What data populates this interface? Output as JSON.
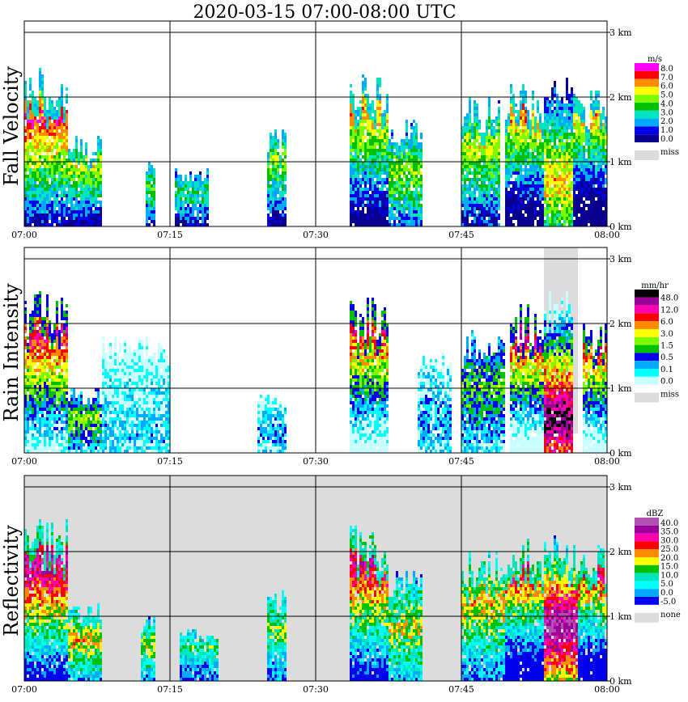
{
  "title": "2020-03-15   07:00-08:00 UTC",
  "x_ticks": [
    "07:00",
    "07:15",
    "07:30",
    "07:45",
    "08:00"
  ],
  "y_ticks": [
    "0 km",
    "1 km",
    "2 km",
    "3 km"
  ],
  "missing_color": "#dcdcdc",
  "chart_data": [
    {
      "type": "heatmap",
      "title": "",
      "ylabel": "Fall Velocity",
      "xlabel": "",
      "xlim": [
        "07:00",
        "08:00"
      ],
      "ylim": [
        0,
        3
      ],
      "unit": "m/s",
      "missing_label": "miss",
      "legend_levels": [
        "8.0",
        "7.0",
        "6.0",
        "5.0",
        "4.0",
        "3.0",
        "2.0",
        "1.0",
        "0.0"
      ],
      "legend_colors": [
        "#ff00ff",
        "#ff0000",
        "#ff8c00",
        "#ffff00",
        "#7cfc00",
        "#00c000",
        "#00e5c0",
        "#00aaff",
        "#0000ee",
        "#0a0090"
      ],
      "echo_columns": [
        {
          "t0": 0.0,
          "t1": 4.5,
          "top": 2.5,
          "core": 1.6,
          "peak": 0.85
        },
        {
          "t0": 4.5,
          "t1": 8.0,
          "top": 1.4,
          "core": 0.9,
          "peak": 0.6
        },
        {
          "t0": 12.5,
          "t1": 13.5,
          "top": 1.1,
          "core": 0.6,
          "peak": 0.5
        },
        {
          "t0": 15.5,
          "t1": 19.0,
          "top": 0.9,
          "core": 0.5,
          "peak": 0.4
        },
        {
          "t0": 25.0,
          "t1": 27.0,
          "top": 1.5,
          "core": 1.0,
          "peak": 0.55
        },
        {
          "t0": 33.5,
          "t1": 37.5,
          "top": 2.4,
          "core": 1.8,
          "peak": 0.75
        },
        {
          "t0": 37.5,
          "t1": 41.0,
          "top": 1.7,
          "core": 0.8,
          "peak": 0.55
        },
        {
          "t0": 45.0,
          "t1": 49.0,
          "top": 2.0,
          "core": 1.2,
          "peak": 0.6
        },
        {
          "t0": 49.5,
          "t1": 53.5,
          "top": 2.2,
          "core": 1.8,
          "peak": 0.8
        },
        {
          "t0": 53.5,
          "t1": 56.5,
          "top": 2.3,
          "core": 0.7,
          "peak": 0.7
        },
        {
          "t0": 56.5,
          "t1": 60.0,
          "top": 2.1,
          "core": 1.9,
          "peak": 0.85
        }
      ],
      "missing_regions": []
    },
    {
      "type": "heatmap",
      "title": "",
      "ylabel": "Rain Intensity",
      "xlabel": "",
      "xlim": [
        "07:00",
        "08:00"
      ],
      "ylim": [
        0,
        3
      ],
      "unit": "mm/hr",
      "missing_label": "miss",
      "legend_levels": [
        "48.0",
        "12.0",
        "6.0",
        "3.0",
        "1.5",
        "0.5",
        "0.1",
        "0.0"
      ],
      "legend_colors": [
        "#000000",
        "#9b009b",
        "#ff00b0",
        "#ff0000",
        "#ff8c00",
        "#ffff00",
        "#7cfc00",
        "#00c000",
        "#0000ee",
        "#00aaff",
        "#00ffff",
        "#c8ffff"
      ],
      "echo_columns": [
        {
          "t0": 0.0,
          "t1": 4.5,
          "top": 2.5,
          "core": 1.8,
          "peak": 0.75
        },
        {
          "t0": 4.5,
          "t1": 8.0,
          "top": 1.0,
          "core": 0.5,
          "peak": 0.45
        },
        {
          "t0": 8.0,
          "t1": 15.0,
          "top": 1.8,
          "core": 0.3,
          "peak": 0.15
        },
        {
          "t0": 24.0,
          "t1": 27.0,
          "top": 0.9,
          "core": 0.3,
          "peak": 0.2
        },
        {
          "t0": 33.5,
          "t1": 37.5,
          "top": 2.4,
          "core": 1.9,
          "peak": 0.75
        },
        {
          "t0": 40.5,
          "t1": 44.0,
          "top": 1.6,
          "core": 0.5,
          "peak": 0.2
        },
        {
          "t0": 45.0,
          "t1": 49.5,
          "top": 1.9,
          "core": 1.0,
          "peak": 0.4
        },
        {
          "t0": 50.0,
          "t1": 53.5,
          "top": 2.3,
          "core": 1.9,
          "peak": 0.85
        },
        {
          "t0": 53.5,
          "t1": 56.5,
          "top": 2.5,
          "core": 0.5,
          "peak": 0.95
        },
        {
          "t0": 57.5,
          "t1": 60.0,
          "top": 2.0,
          "core": 1.6,
          "peak": 0.7
        }
      ],
      "missing_regions": [
        {
          "t0": 53.5,
          "t1": 57.0,
          "y0": 0.3,
          "y1": 3.0
        }
      ]
    },
    {
      "type": "heatmap",
      "title": "",
      "ylabel": "Reflectivity",
      "xlabel": "",
      "xlim": [
        "07:00",
        "08:00"
      ],
      "ylim": [
        0,
        3
      ],
      "unit": "dBZ",
      "missing_label": "none",
      "legend_levels": [
        "40.0",
        "35.0",
        "30.0",
        "25.0",
        "20.0",
        "15.0",
        "10.0",
        "5.0",
        "0.0",
        "-5.0"
      ],
      "legend_colors": [
        "#b050b0",
        "#9b009b",
        "#ff00b0",
        "#ff0000",
        "#ff8c00",
        "#ffff00",
        "#00c000",
        "#00e5c0",
        "#00ffff",
        "#00aaff",
        "#0000ee"
      ],
      "echo_columns": [
        {
          "t0": 0.0,
          "t1": 4.5,
          "top": 2.5,
          "core": 1.8,
          "peak": 0.85
        },
        {
          "t0": 4.5,
          "t1": 8.0,
          "top": 1.2,
          "core": 0.6,
          "peak": 0.55
        },
        {
          "t0": 12.0,
          "t1": 13.5,
          "top": 1.0,
          "core": 0.5,
          "peak": 0.45
        },
        {
          "t0": 16.0,
          "t1": 20.0,
          "top": 0.8,
          "core": 0.5,
          "peak": 0.35
        },
        {
          "t0": 25.0,
          "t1": 27.0,
          "top": 1.4,
          "core": 0.8,
          "peak": 0.45
        },
        {
          "t0": 33.5,
          "t1": 37.5,
          "top": 2.4,
          "core": 1.8,
          "peak": 0.8
        },
        {
          "t0": 37.5,
          "t1": 41.0,
          "top": 1.7,
          "core": 0.8,
          "peak": 0.5
        },
        {
          "t0": 45.0,
          "t1": 49.5,
          "top": 2.0,
          "core": 1.2,
          "peak": 0.55
        },
        {
          "t0": 49.5,
          "t1": 53.5,
          "top": 2.2,
          "core": 1.9,
          "peak": 0.85
        },
        {
          "t0": 53.5,
          "t1": 57.0,
          "top": 2.3,
          "core": 0.8,
          "peak": 0.95
        },
        {
          "t0": 57.0,
          "t1": 60.0,
          "top": 2.1,
          "core": 1.9,
          "peak": 0.9
        }
      ],
      "missing_regions": [
        {
          "t0": 0.0,
          "t1": 60.0,
          "y0": 0.0,
          "y1": 3.0
        }
      ]
    }
  ]
}
